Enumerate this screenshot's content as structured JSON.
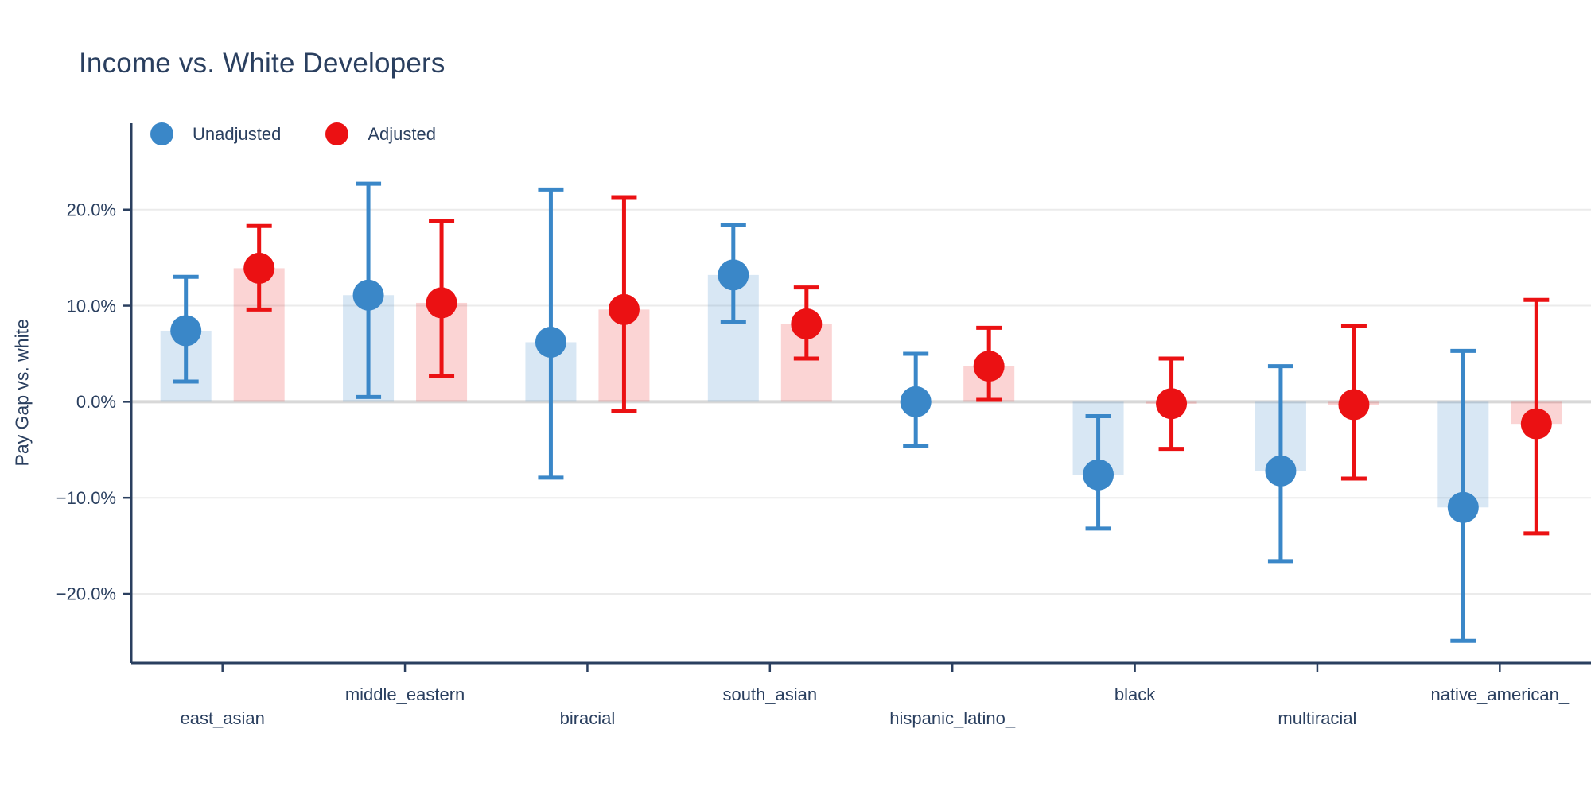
{
  "title": "Income vs. White Developers",
  "text_color": "#2a3f5f",
  "legend": {
    "items": [
      {
        "label": "Unadjusted",
        "color": "#3a87c8"
      },
      {
        "label": "Adjusted",
        "color": "#eb1113"
      }
    ]
  },
  "y_axis": {
    "title": "Pay Gap vs. white",
    "tick_labels": [
      "20.0%",
      "10.0%",
      "0.0%",
      "−10.0%",
      "−20.0%"
    ],
    "tick_values": [
      20,
      10,
      0,
      -10,
      -20
    ]
  },
  "chart_data": {
    "type": "bar",
    "subtype": "grouped bars with mean markers and confidence-interval error bars",
    "title": "Income vs. White Developers",
    "xlabel": "",
    "ylabel": "Pay Gap vs. white",
    "ylim": [
      -27.2,
      29.0
    ],
    "grid": {
      "show": true,
      "color": "#ebebeb",
      "zero_color": "#d8d8d8"
    },
    "axis_color": "#2a3f5f",
    "legend_position": "top-left",
    "categories": [
      "east_asian",
      "middle_eastern",
      "biracial",
      "south_asian",
      "hispanic_latino_",
      "black",
      "multiracial",
      "native_american_"
    ],
    "label_rows": [
      "lower",
      "upper",
      "lower",
      "upper",
      "lower",
      "upper",
      "lower",
      "upper"
    ],
    "series": [
      {
        "name": "Unadjusted",
        "color": "#3a87c8",
        "bar_fill_opacity": 0.2,
        "values": [
          7.4,
          11.1,
          6.2,
          13.2,
          0.0,
          -7.6,
          -7.2,
          -11.0
        ],
        "ci_low": [
          2.1,
          0.5,
          -7.9,
          8.3,
          -4.6,
          -13.2,
          -16.6,
          -24.9
        ],
        "ci_high": [
          13.0,
          22.7,
          22.1,
          18.4,
          5.0,
          -1.5,
          3.7,
          5.3
        ]
      },
      {
        "name": "Adjusted",
        "color": "#eb1113",
        "bar_fill_opacity": 0.18,
        "values": [
          13.9,
          10.3,
          9.6,
          8.1,
          3.7,
          -0.2,
          -0.3,
          -2.3
        ],
        "ci_low": [
          9.6,
          2.7,
          -1.0,
          4.5,
          0.2,
          -4.9,
          -8.0,
          -13.7
        ],
        "ci_high": [
          18.3,
          18.8,
          21.3,
          11.9,
          7.7,
          4.5,
          7.9,
          10.6
        ]
      }
    ]
  }
}
